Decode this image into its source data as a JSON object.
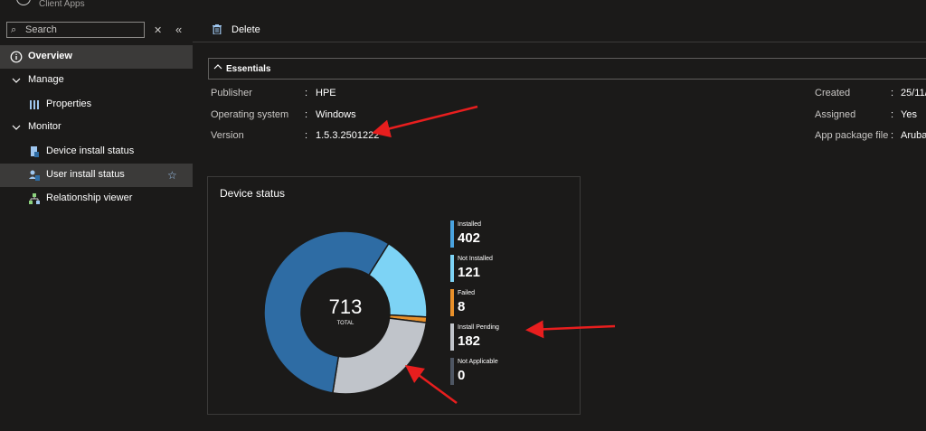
{
  "header": {
    "subtitle": "Client Apps"
  },
  "sidebar": {
    "search_placeholder": "Search",
    "items": [
      {
        "label": "Overview",
        "icon": "info-icon"
      },
      {
        "label": "Manage",
        "icon": "chevron-down-icon"
      },
      {
        "label": "Properties",
        "icon": "properties-icon"
      },
      {
        "label": "Monitor",
        "icon": "chevron-down-icon"
      },
      {
        "label": "Device install status",
        "icon": "device-icon"
      },
      {
        "label": "User install status",
        "icon": "user-icon"
      },
      {
        "label": "Relationship viewer",
        "icon": "relationship-icon"
      }
    ]
  },
  "toolbar": {
    "delete_label": "Delete"
  },
  "essentials": {
    "title": "Essentials",
    "left": [
      {
        "label": "Publisher",
        "value": "HPE"
      },
      {
        "label": "Operating system",
        "value": "Windows"
      },
      {
        "label": "Version",
        "value": "1.5.3.2501222"
      }
    ],
    "right": [
      {
        "label": "Created",
        "value": "25/11/"
      },
      {
        "label": "Assigned",
        "value": "Yes"
      },
      {
        "label": "App package file",
        "value": "Aruba_"
      }
    ]
  },
  "device_status": {
    "title": "Device status",
    "total": "713",
    "total_label": "TOTAL",
    "legend": [
      {
        "name": "Installed",
        "value": "402",
        "color": "#2e6ca4"
      },
      {
        "name": "Not Installed",
        "value": "121",
        "color": "#7dd3f5"
      },
      {
        "name": "Failed",
        "value": "8",
        "color": "#e8902a"
      },
      {
        "name": "Install Pending",
        "value": "182",
        "color": "#c0c4ca"
      },
      {
        "name": "Not Applicable",
        "value": "0",
        "color": "#4e5663"
      }
    ]
  },
  "chart_data": {
    "type": "pie",
    "title": "Device status",
    "categories": [
      "Installed",
      "Not Installed",
      "Failed",
      "Install Pending",
      "Not Applicable"
    ],
    "values": [
      402,
      121,
      8,
      182,
      0
    ],
    "colors": [
      "#2e6ca4",
      "#7dd3f5",
      "#e8902a",
      "#c0c4ca",
      "#4e5663"
    ]
  },
  "annotation_color": "#e81e1e"
}
